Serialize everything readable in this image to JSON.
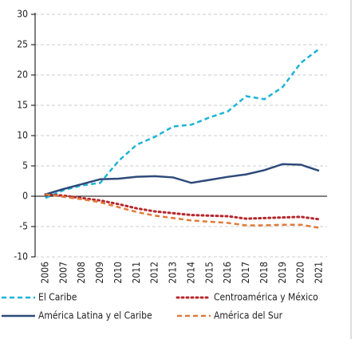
{
  "chart_data": {
    "type": "line",
    "categories": [
      "2006",
      "2007",
      "2008",
      "2009",
      "2010",
      "2011",
      "2012",
      "2013",
      "2014",
      "2015",
      "2016",
      "2017",
      "2018",
      "2019",
      "2020",
      "2021"
    ],
    "series": [
      {
        "name": "El Caribe",
        "color": "#1fb3d5",
        "style": "dashed",
        "values": [
          -0.3,
          1.0,
          1.8,
          2.2,
          5.8,
          8.5,
          9.8,
          11.5,
          11.8,
          13.0,
          14.0,
          16.5,
          16.0,
          18.0,
          22.0,
          24.3
        ]
      },
      {
        "name": "Centroamérica y México",
        "color": "#b5282e",
        "style": "dotted",
        "values": [
          0.3,
          0.1,
          -0.3,
          -0.7,
          -1.3,
          -2.0,
          -2.5,
          -2.8,
          -3.1,
          -3.2,
          -3.3,
          -3.7,
          -3.6,
          -3.5,
          -3.4,
          -3.8
        ]
      },
      {
        "name": "América Latina y el Caribe",
        "color": "#2e4a7a",
        "style": "solid",
        "values": [
          0.3,
          1.2,
          2.0,
          2.8,
          2.9,
          3.2,
          3.3,
          3.1,
          2.2,
          2.7,
          3.2,
          3.6,
          4.3,
          5.3,
          5.2,
          4.2
        ]
      },
      {
        "name": "América del Sur",
        "color": "#e07b39",
        "style": "dashed",
        "values": [
          0.3,
          -0.1,
          -0.5,
          -1.0,
          -1.8,
          -2.6,
          -3.2,
          -3.6,
          -4.0,
          -4.2,
          -4.4,
          -4.8,
          -4.8,
          -4.7,
          -4.7,
          -5.2
        ]
      }
    ],
    "ylim": [
      -10,
      30
    ],
    "yticks": [
      -10,
      -5,
      0,
      5,
      10,
      15,
      20,
      25,
      30
    ],
    "grid": true
  }
}
